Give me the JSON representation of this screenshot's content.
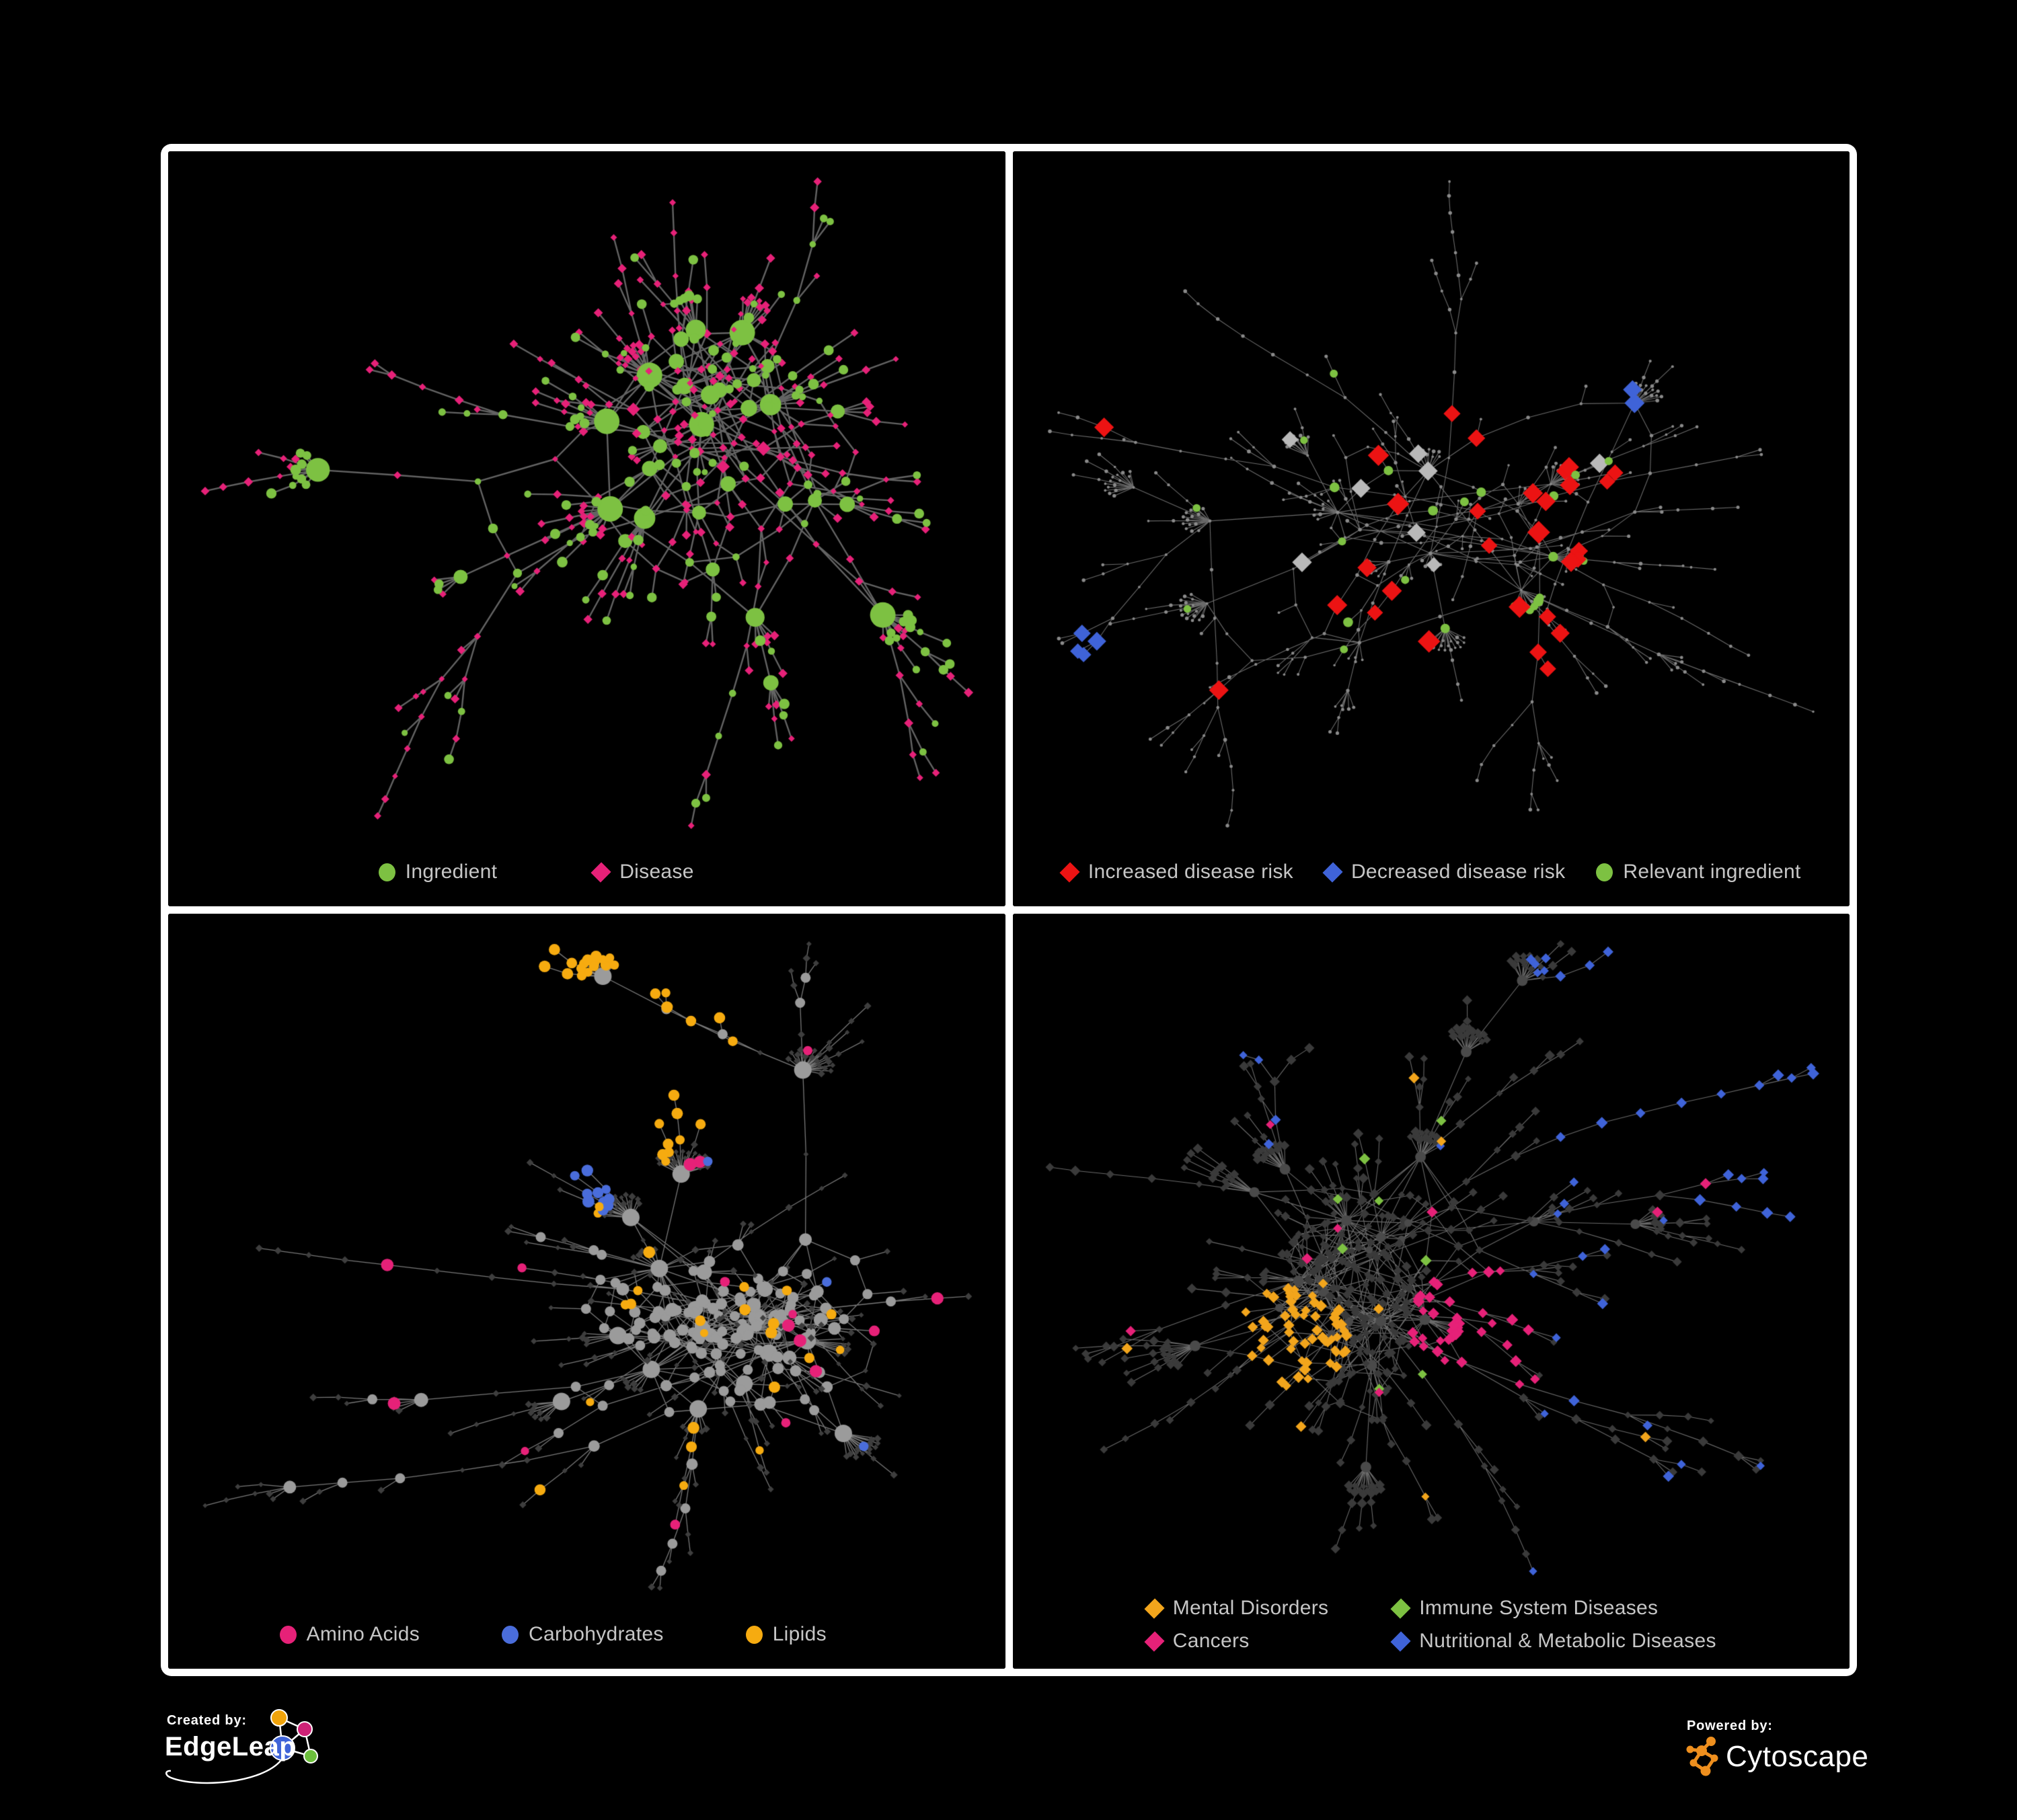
{
  "page": {
    "background": "#000000",
    "panel_border": "#ffffff",
    "legend_text_color": "#c6c6c6"
  },
  "footer": {
    "created_by_label": "Created by:",
    "created_by_brand": "EdgeLeap",
    "powered_by_label": "Powered by:",
    "powered_by_brand": "Cytoscape",
    "edgeleap_icon": {
      "orange": "#f0a30a",
      "magenta": "#cf2277",
      "blue": "#3f63d8",
      "green": "#6cbf3c"
    },
    "cytoscape_icon_color": "#ee8f1e"
  },
  "panels": [
    {
      "legend": [
        {
          "shape": "circle",
          "color": "#7dc142",
          "label": "Ingredient"
        },
        {
          "shape": "diamond",
          "color": "#e62178",
          "label": "Disease"
        }
      ],
      "graph": {
        "seed": 101,
        "nodes": 450,
        "fanProb": 0.05,
        "fanMax": 13,
        "chainProb": 0.56,
        "extraEdges": 80,
        "iterations": 60,
        "bottomMargin": 120,
        "edgeColor": "#6e6e6e",
        "edgeAlpha": 0.9,
        "edgeWidth": 2.4,
        "base": {
          "shape": "diamond",
          "color": "#e62178",
          "size": 5.5
        },
        "hub": {
          "minDegree": 5,
          "shape": "circle",
          "color": "#7dc142",
          "size": 6,
          "perDeg": 0.9,
          "maxSize": 19,
          "altProb": 0.2,
          "altShape": "diamond",
          "altColor": "#e62178",
          "altSize": 8,
          "altMax": 13
        },
        "sprinkle": [
          {
            "shape": "circle",
            "color": "#7dc142",
            "count": 140,
            "size": [
              4.5,
              8
            ],
            "zone": "any"
          }
        ]
      }
    },
    {
      "legend": [
        {
          "shape": "diamond",
          "color": "#ec1313",
          "label": "Increased disease risk"
        },
        {
          "shape": "diamond",
          "color": "#3f63d8",
          "label": "Decreased disease risk"
        },
        {
          "shape": "circle",
          "color": "#7dc142",
          "label": "Relevant ingredient"
        }
      ],
      "graph": {
        "seed": 202,
        "nodes": 540,
        "fanProb": 0.045,
        "fanMax": 15,
        "chainProb": 0.62,
        "extraEdges": 40,
        "iterations": 60,
        "bottomMargin": 120,
        "edgeColor": "#7d7d7d",
        "edgeAlpha": 0.85,
        "edgeWidth": 1.1,
        "base": {
          "shape": "circle",
          "color": "#8a8a8a",
          "size": 2.2
        },
        "hub": {
          "minDegree": 99,
          "shape": "circle",
          "color": "#8a8a8a",
          "size": 3,
          "perDeg": 0,
          "maxSize": 4
        },
        "sprinkle": [
          {
            "shape": "diamond",
            "color": "#ec1313",
            "count": 22,
            "size": [
              12,
              17
            ],
            "zone": "center"
          },
          {
            "shape": "diamond",
            "color": "#ec1313",
            "count": 4,
            "size": [
              12,
              15
            ],
            "zone": "any"
          },
          {
            "shape": "diamond",
            "color": "#ec1313",
            "count": 3,
            "size": [
              12,
              15
            ],
            "zone": "bottomright",
            "cluster": true
          },
          {
            "shape": "diamond",
            "color": "#b9b9b9",
            "count": 8,
            "size": [
              11,
              15
            ],
            "zone": "center"
          },
          {
            "shape": "circle",
            "color": "#7dc142",
            "count": 18,
            "size": [
              5.5,
              8
            ],
            "zone": "center"
          },
          {
            "shape": "circle",
            "color": "#7dc142",
            "count": 6,
            "size": [
              5,
              7
            ],
            "zone": "any"
          },
          {
            "shape": "diamond",
            "color": "#3f63d8",
            "count": 4,
            "size": [
              11,
              14
            ],
            "zone": "centerleft",
            "cluster": true
          },
          {
            "shape": "diamond",
            "color": "#3f63d8",
            "count": 2,
            "size": [
              13,
              15
            ],
            "zone": "topright",
            "cluster": true
          }
        ]
      }
    },
    {
      "legend": [
        {
          "shape": "circle",
          "color": "#e62178",
          "label": "Amino Acids"
        },
        {
          "shape": "circle",
          "color": "#4a6ddb",
          "label": "Carbohydrates"
        },
        {
          "shape": "circle",
          "color": "#f6ab10",
          "label": "Lipids"
        }
      ],
      "graph": {
        "seed": 303,
        "nodes": 500,
        "fanProb": 0.055,
        "fanMax": 16,
        "chainProb": 0.55,
        "extraEdges": 120,
        "iterations": 56,
        "bottomMargin": 120,
        "edgeColor": "#a0a0a0",
        "edgeAlpha": 0.75,
        "edgeWidth": 1.3,
        "base": {
          "shape": "diamond",
          "color": "#3e3e3e",
          "size": 4.5
        },
        "hub": {
          "minDegree": 3,
          "shape": "circle",
          "color": "#9b9b9b",
          "size": 4.5,
          "perDeg": 1.0,
          "maxSize": 13
        },
        "sprinkle": [
          {
            "shape": "circle",
            "color": "#f6ab10",
            "count": 30,
            "size": [
              6.5,
              9
            ],
            "zone": "centertop",
            "cluster": true
          },
          {
            "shape": "circle",
            "color": "#f6ab10",
            "count": 24,
            "size": [
              6,
              9
            ],
            "zone": "centerwide"
          },
          {
            "shape": "circle",
            "color": "#4a6ddb",
            "count": 10,
            "size": [
              6.5,
              9
            ],
            "zone": "centertop",
            "cluster": true
          },
          {
            "shape": "circle",
            "color": "#4a6ddb",
            "count": 3,
            "size": [
              6,
              8
            ],
            "zone": "any"
          },
          {
            "shape": "circle",
            "color": "#e62178",
            "count": 16,
            "size": [
              6,
              9.5
            ],
            "zone": "any"
          }
        ]
      }
    },
    {
      "legend": [
        {
          "shape": "diamond",
          "color": "#f2a51c",
          "label": "Mental Disorders"
        },
        {
          "shape": "diamond",
          "color": "#7dc142",
          "label": "Immune System Diseases"
        },
        {
          "shape": "diamond",
          "color": "#e62178",
          "label": "Cancers"
        },
        {
          "shape": "diamond",
          "color": "#3f63d8",
          "label": "Nutritional & Metabolic Diseases"
        }
      ],
      "graph": {
        "seed": 404,
        "nodes": 640,
        "fanProb": 0.05,
        "fanMax": 15,
        "chainProb": 0.55,
        "extraEdges": 150,
        "iterations": 48,
        "bottomMargin": 145,
        "edgeColor": "#979797",
        "edgeAlpha": 0.7,
        "edgeWidth": 1.1,
        "base": {
          "shape": "diamond",
          "color": "#3a3a3a",
          "size": 6
        },
        "hub": {
          "minDegree": 6,
          "shape": "circle",
          "color": "#4a4a4a",
          "size": 4,
          "perDeg": 0.25,
          "maxSize": 8
        },
        "sprinkle": [
          {
            "shape": "diamond",
            "color": "#f2a51c",
            "count": 58,
            "size": [
              6.5,
              9
            ],
            "zone": "leftcenter",
            "cluster": true
          },
          {
            "shape": "diamond",
            "color": "#f2a51c",
            "count": 8,
            "size": [
              6,
              8.5
            ],
            "zone": "any"
          },
          {
            "shape": "diamond",
            "color": "#e62178",
            "count": 38,
            "size": [
              6.5,
              9
            ],
            "zone": "center",
            "cluster": true
          },
          {
            "shape": "diamond",
            "color": "#e62178",
            "count": 8,
            "size": [
              6,
              8.5
            ],
            "zone": "any"
          },
          {
            "shape": "diamond",
            "color": "#3f63d8",
            "count": 16,
            "size": [
              6.5,
              9
            ],
            "zone": "right",
            "cluster": true
          },
          {
            "shape": "diamond",
            "color": "#3f63d8",
            "count": 12,
            "size": [
              6.5,
              9
            ],
            "zone": "topright",
            "cluster": true
          },
          {
            "shape": "diamond",
            "color": "#3f63d8",
            "count": 20,
            "size": [
              6,
              8.5
            ],
            "zone": "right"
          },
          {
            "shape": "diamond",
            "color": "#3f63d8",
            "count": 8,
            "size": [
              6,
              8.5
            ],
            "zone": "top"
          },
          {
            "shape": "diamond",
            "color": "#7dc142",
            "count": 8,
            "size": [
              6.5,
              8.5
            ],
            "zone": "centerwide"
          }
        ]
      }
    }
  ]
}
